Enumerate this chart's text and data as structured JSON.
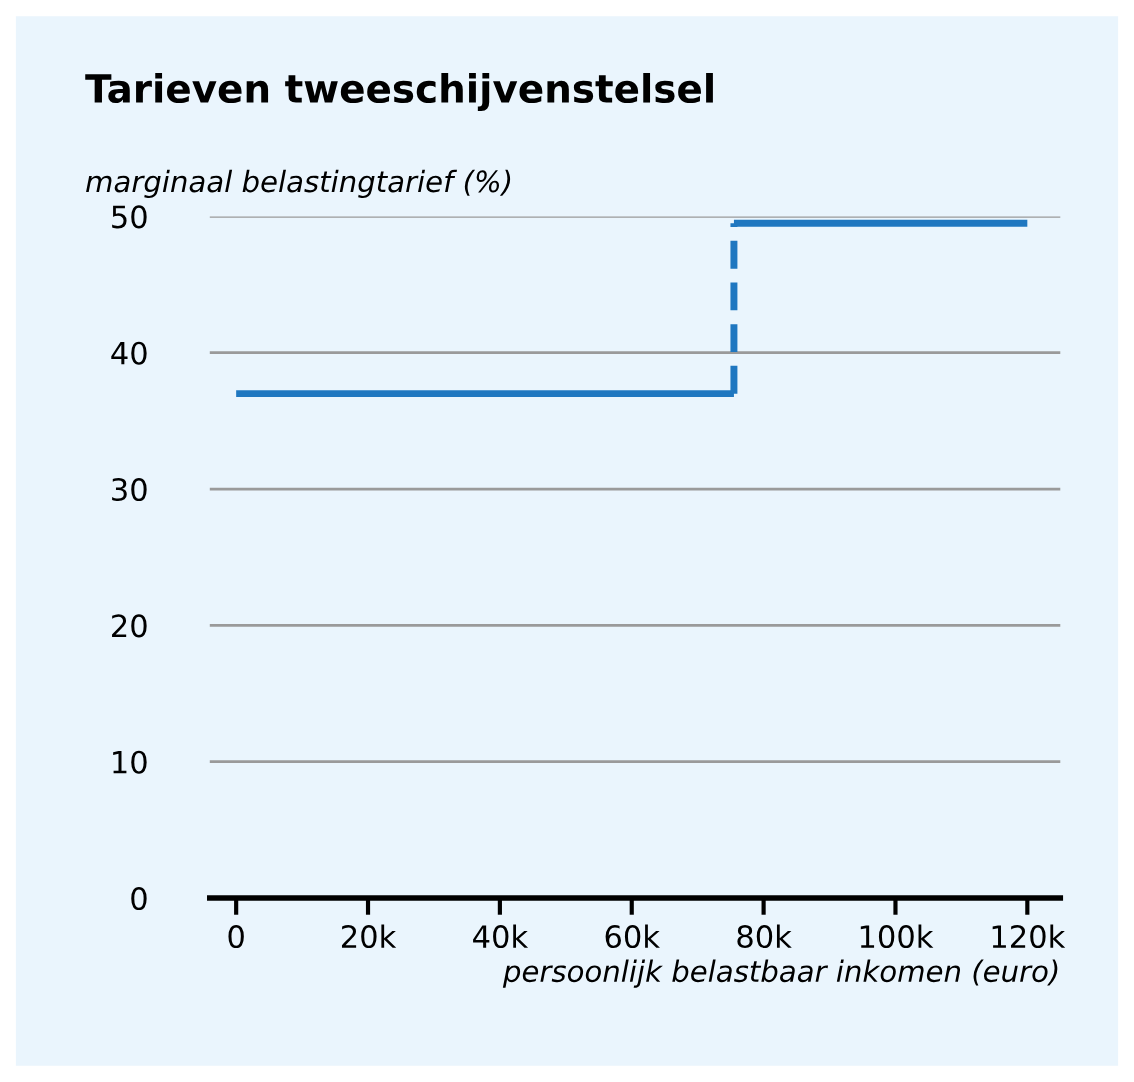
{
  "chart_data": {
    "type": "line",
    "title": "Tarieven tweeschijvenstelsel",
    "ylabel": "marginaal belastingtarief (%)",
    "xlabel": "persoonlijk belastbaar inkomen (euro)",
    "series": [
      {
        "color": "#1f77c0",
        "x": [
          0,
          75.5
        ],
        "values": [
          37,
          37
        ],
        "line_style": "solid"
      },
      {
        "color": "#1f77c0",
        "x": [
          75.5,
          75.5
        ],
        "values": [
          37,
          49.5
        ],
        "line_style": "dashed"
      },
      {
        "color": "#1f77c0",
        "x": [
          75.5,
          120
        ],
        "values": [
          49.5,
          49.5
        ],
        "line_style": "solid"
      }
    ],
    "xlim": [
      -4,
      125
    ],
    "xticks": [
      0,
      {
        "value": 20,
        "label": "20k"
      },
      {
        "value": 40,
        "label": "40k"
      },
      {
        "value": 60,
        "label": "60k"
      },
      {
        "value": 80,
        "label": "80k"
      },
      {
        "value": 100,
        "label": "100k"
      },
      {
        "value": 120,
        "label": "120k"
      }
    ],
    "ylim": [
      0,
      50
    ],
    "yticks": [
      0,
      10,
      20,
      30,
      40,
      50
    ],
    "grid": "y",
    "legend": false,
    "marker": "none"
  }
}
